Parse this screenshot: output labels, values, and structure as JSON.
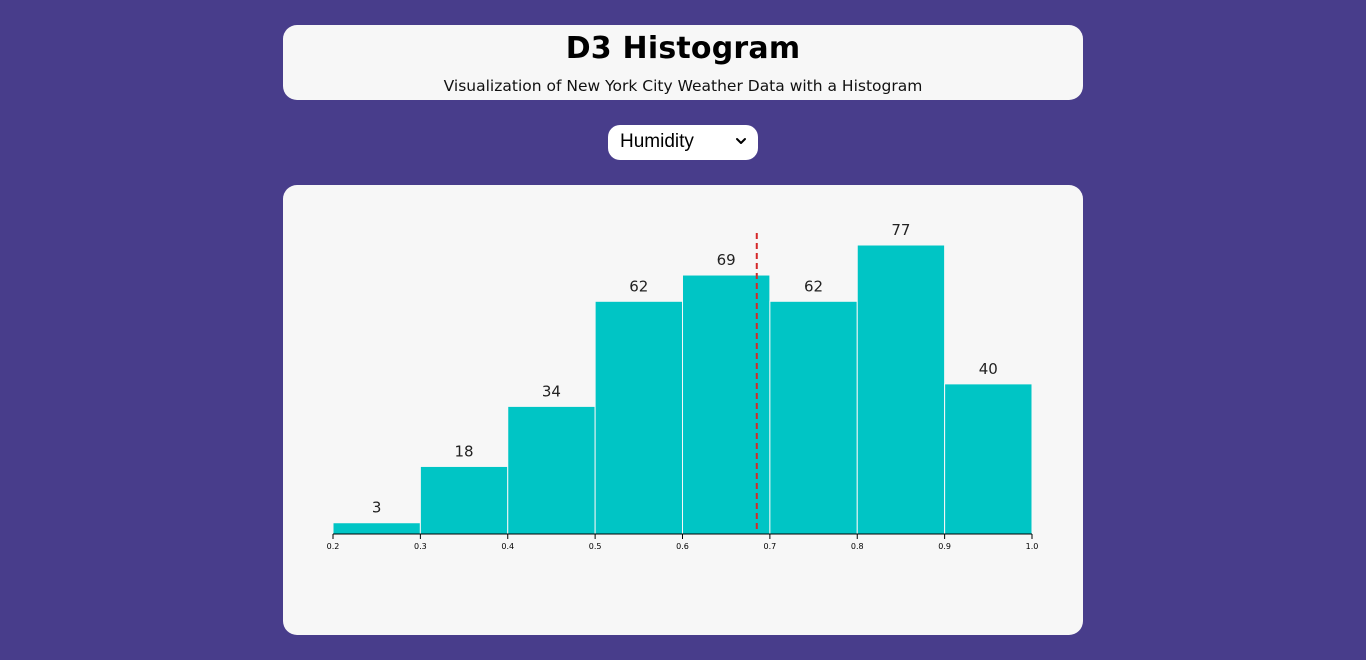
{
  "header": {
    "title": "D3 Histogram",
    "subtitle": "Visualization of New York City Weather Data with a Histogram"
  },
  "metric_select": {
    "selected": "Humidity",
    "icon": "chevron-down-icon"
  },
  "colors": {
    "background": "#483d8b",
    "bar": "#00c5c5",
    "mean_line": "#d62728"
  },
  "chart_data": {
    "type": "bar",
    "title": "",
    "xlabel": "",
    "ylabel": "",
    "bins": [
      {
        "x0": 0.2,
        "x1": 0.3,
        "count": 3
      },
      {
        "x0": 0.3,
        "x1": 0.4,
        "count": 18
      },
      {
        "x0": 0.4,
        "x1": 0.5,
        "count": 34
      },
      {
        "x0": 0.5,
        "x1": 0.6,
        "count": 62
      },
      {
        "x0": 0.6,
        "x1": 0.7,
        "count": 69
      },
      {
        "x0": 0.7,
        "x1": 0.8,
        "count": 62
      },
      {
        "x0": 0.8,
        "x1": 0.9,
        "count": 77
      },
      {
        "x0": 0.9,
        "x1": 1.0,
        "count": 40
      }
    ],
    "x_ticks": [
      "0.2",
      "0.3",
      "0.4",
      "0.5",
      "0.6",
      "0.7",
      "0.8",
      "0.9",
      "1.0"
    ],
    "xlim": [
      0.2,
      1.0
    ],
    "ylim": [
      0,
      77
    ],
    "mean_line_x": 0.685,
    "grid": false,
    "legend": "none"
  }
}
